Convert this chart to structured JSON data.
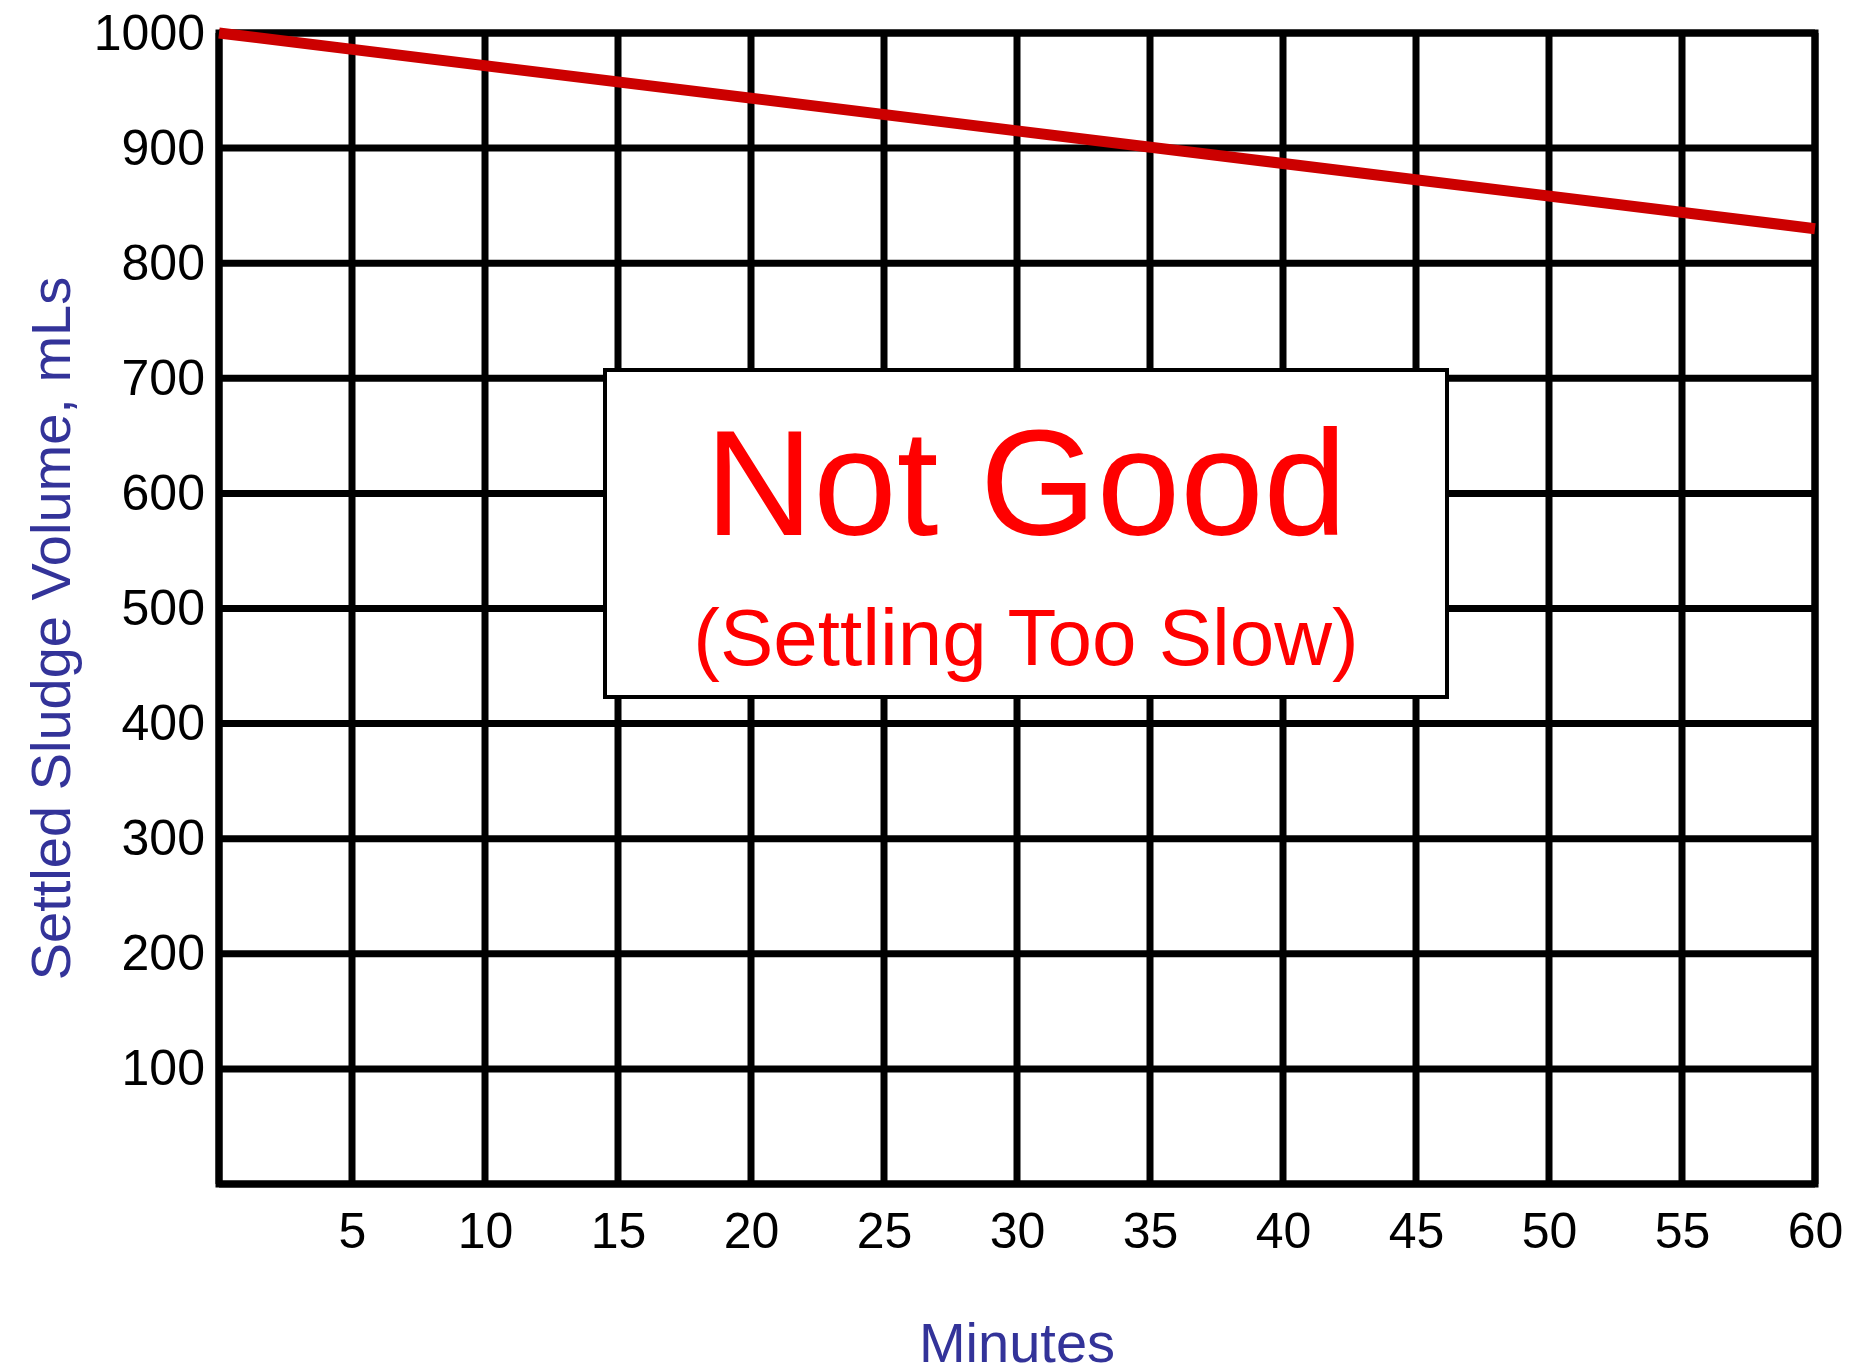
{
  "chart_data": {
    "type": "line",
    "xlabel": "Minutes",
    "ylabel": "Settled Sludge Volume, mLs",
    "x": [
      0,
      60
    ],
    "series": [
      {
        "color": "#cc0000",
        "values": [
          1000,
          830
        ]
      }
    ],
    "xlim": [
      0,
      60
    ],
    "xticks": [
      {
        "value": 0,
        "label": null
      },
      5,
      10,
      15,
      20,
      25,
      30,
      35,
      40,
      45,
      50,
      55,
      60
    ],
    "ylim": [
      0,
      1000
    ],
    "yticks": [
      {
        "value": 0,
        "label": null
      },
      100,
      200,
      300,
      400,
      500,
      600,
      700,
      800,
      900,
      1000
    ],
    "grid": true,
    "marker": "none",
    "line_style": "solid",
    "annotations": [
      "Not Good",
      "(Settling Too Slow)"
    ]
  }
}
